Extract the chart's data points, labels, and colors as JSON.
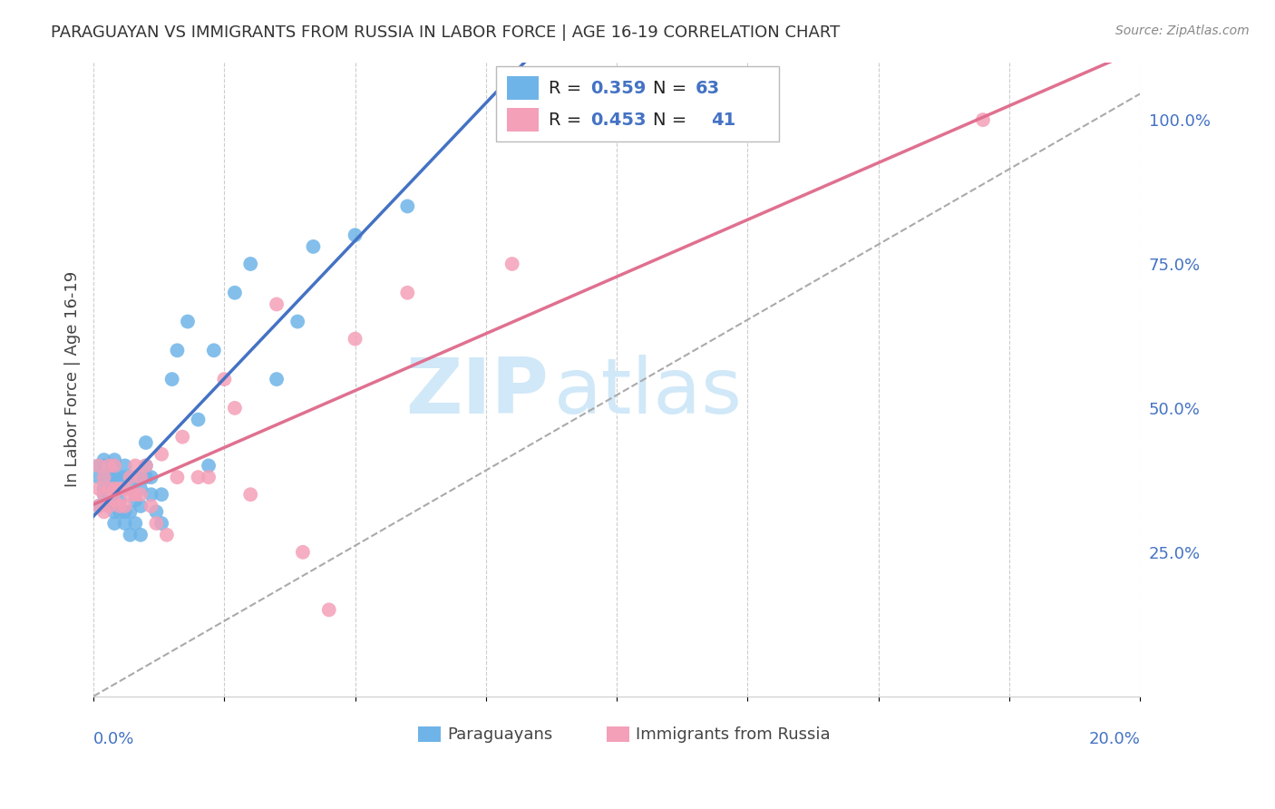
{
  "title": "PARAGUAYAN VS IMMIGRANTS FROM RUSSIA IN LABOR FORCE | AGE 16-19 CORRELATION CHART",
  "source": "Source: ZipAtlas.com",
  "ylabel": "In Labor Force | Age 16-19",
  "right_yticklabels": [
    "",
    "25.0%",
    "50.0%",
    "75.0%",
    "100.0%"
  ],
  "legend_r1": "0.359",
  "legend_n1": "63",
  "legend_r2": "0.453",
  "legend_n2": "41",
  "color_blue": "#6EB4E8",
  "color_pink": "#F4A0B8",
  "color_blue_text": "#4472C4",
  "color_pink_text": "#E07090",
  "title_color": "#333333",
  "grid_color": "#CCCCCC",
  "watermark_zip": "ZIP",
  "watermark_atlas": "atlas",
  "watermark_color": "#D0E8F8",
  "paraguayan_x": [
    0.001,
    0.001,
    0.001,
    0.002,
    0.002,
    0.002,
    0.002,
    0.002,
    0.003,
    0.003,
    0.003,
    0.003,
    0.003,
    0.003,
    0.003,
    0.003,
    0.004,
    0.004,
    0.004,
    0.004,
    0.004,
    0.004,
    0.005,
    0.005,
    0.005,
    0.005,
    0.006,
    0.006,
    0.006,
    0.006,
    0.006,
    0.007,
    0.007,
    0.007,
    0.007,
    0.008,
    0.008,
    0.008,
    0.009,
    0.009,
    0.009,
    0.009,
    0.01,
    0.01,
    0.01,
    0.011,
    0.011,
    0.012,
    0.013,
    0.013,
    0.015,
    0.016,
    0.018,
    0.02,
    0.022,
    0.023,
    0.027,
    0.03,
    0.035,
    0.039,
    0.042,
    0.05,
    0.06
  ],
  "paraguayan_y": [
    0.33,
    0.38,
    0.4,
    0.35,
    0.36,
    0.38,
    0.4,
    0.41,
    0.33,
    0.34,
    0.35,
    0.36,
    0.37,
    0.38,
    0.39,
    0.4,
    0.3,
    0.32,
    0.35,
    0.38,
    0.4,
    0.41,
    0.32,
    0.34,
    0.36,
    0.38,
    0.3,
    0.32,
    0.36,
    0.38,
    0.4,
    0.28,
    0.32,
    0.36,
    0.38,
    0.3,
    0.34,
    0.38,
    0.28,
    0.33,
    0.36,
    0.38,
    0.38,
    0.4,
    0.44,
    0.35,
    0.38,
    0.32,
    0.3,
    0.35,
    0.55,
    0.6,
    0.65,
    0.48,
    0.4,
    0.6,
    0.7,
    0.75,
    0.55,
    0.65,
    0.78,
    0.8,
    0.85
  ],
  "russia_x": [
    0.001,
    0.001,
    0.001,
    0.002,
    0.002,
    0.002,
    0.003,
    0.003,
    0.003,
    0.004,
    0.004,
    0.004,
    0.005,
    0.005,
    0.006,
    0.006,
    0.007,
    0.007,
    0.008,
    0.008,
    0.009,
    0.009,
    0.01,
    0.011,
    0.012,
    0.013,
    0.014,
    0.016,
    0.017,
    0.02,
    0.022,
    0.025,
    0.027,
    0.03,
    0.035,
    0.04,
    0.045,
    0.05,
    0.06,
    0.08,
    0.17
  ],
  "russia_y": [
    0.33,
    0.36,
    0.4,
    0.32,
    0.35,
    0.38,
    0.33,
    0.36,
    0.4,
    0.34,
    0.36,
    0.4,
    0.33,
    0.36,
    0.33,
    0.36,
    0.35,
    0.38,
    0.35,
    0.4,
    0.35,
    0.38,
    0.4,
    0.33,
    0.3,
    0.42,
    0.28,
    0.38,
    0.45,
    0.38,
    0.38,
    0.55,
    0.5,
    0.35,
    0.68,
    0.25,
    0.15,
    0.62,
    0.7,
    0.75,
    1.0
  ],
  "xmin": 0.0,
  "xmax": 0.2,
  "ymin": 0.0,
  "ymax": 1.1
}
